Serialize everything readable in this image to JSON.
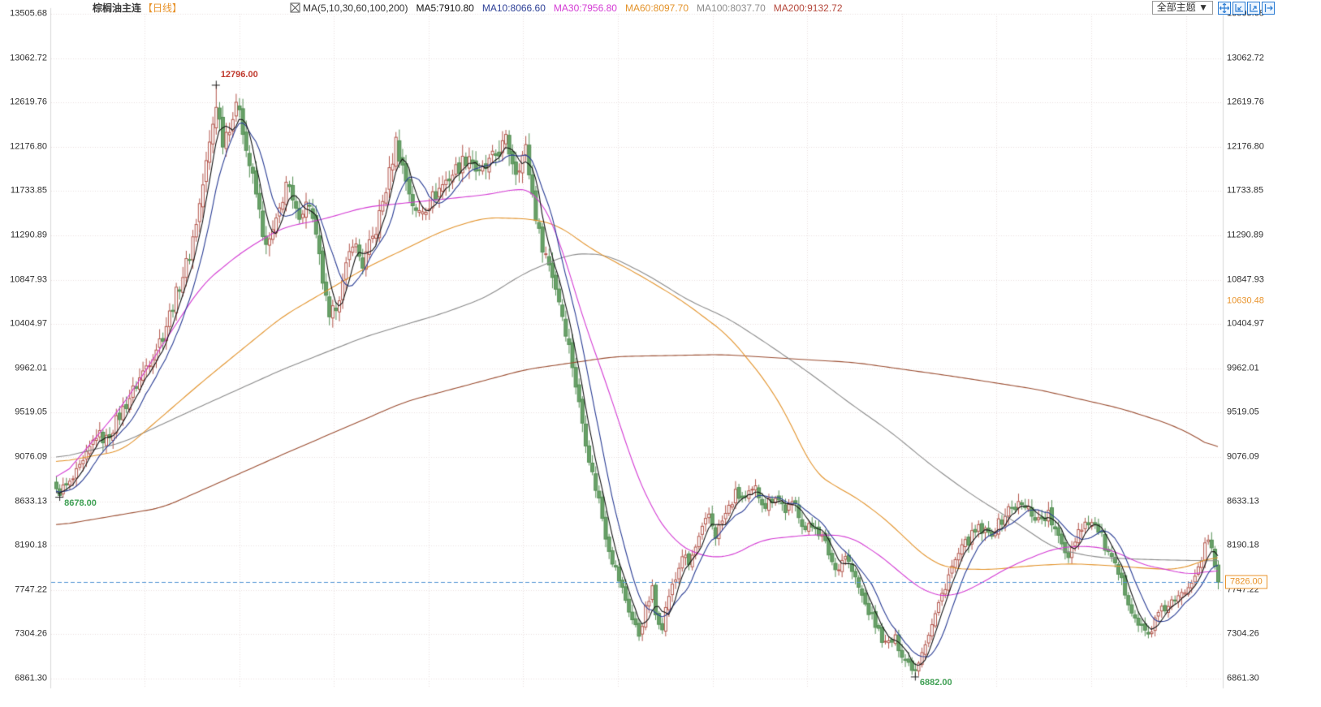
{
  "header": {
    "symbol": "棕榈油主连",
    "period": "【日线】",
    "ma_group": "MA(5,10,30,60,100,200)",
    "ma_items": [
      {
        "name": "MA5",
        "label": "MA5:7910.80",
        "color": "#141414",
        "window": 5
      },
      {
        "name": "MA10",
        "label": "MA10:8066.60",
        "color": "#2c3f96",
        "window": 10
      },
      {
        "name": "MA30",
        "label": "MA30:7956.80",
        "color": "#d43cd4",
        "window": 30
      },
      {
        "name": "MA60",
        "label": "MA60:8097.70",
        "color": "#e3932b",
        "window": 60
      },
      {
        "name": "MA100",
        "label": "MA100:8037.70",
        "color": "#8c8c8c",
        "window": 100
      },
      {
        "name": "MA200",
        "label": "MA200:9132.72",
        "color": "#b5483c",
        "window": 200
      }
    ],
    "controls": {
      "theme_selector": "全部主题 ▼",
      "icons": [
        "crosshair-icon",
        "zoom-out-icon",
        "zoom-in-icon",
        "pan-right-icon"
      ]
    }
  },
  "y_axis": {
    "max": 13505.68,
    "min": 6861.3,
    "labels": [
      "13505.68",
      "13062.72",
      "12619.76",
      "12176.80",
      "11733.85",
      "11290.89",
      "10847.93",
      "10404.97",
      "9962.01",
      "9519.05",
      "9076.09",
      "8633.13",
      "8190.18",
      "7747.22",
      "7304.26",
      "6861.30"
    ]
  },
  "right_axis_extra": [
    {
      "label": "10630.48",
      "price": 10630.48,
      "style": "plain-orange"
    },
    {
      "label": "7826.00",
      "price": 7826.0,
      "style": "boxed-orange"
    }
  ],
  "chart_data": {
    "type": "candlestick",
    "title": "棕榈油主连 日线",
    "n_candles": 350,
    "price_range": [
      6861.3,
      13505.68
    ],
    "last_close": 7826.0,
    "colors": {
      "up": "#b3564c",
      "down_fill": "#68a168",
      "down_border": "#548f54",
      "grid": "#eadfdf",
      "axis_text": "#2f2f2f",
      "last_price_line": "#4f94d4",
      "marker_high": "#c03a2e",
      "marker_low": "#3fa054",
      "cross": "#222222"
    },
    "close_anchors": [
      [
        0,
        8720
      ],
      [
        4,
        8800
      ],
      [
        8,
        9000
      ],
      [
        12,
        9300
      ],
      [
        15,
        9250
      ],
      [
        20,
        9550
      ],
      [
        24,
        9800
      ],
      [
        28,
        10050
      ],
      [
        32,
        10300
      ],
      [
        36,
        10700
      ],
      [
        40,
        11100
      ],
      [
        43,
        11600
      ],
      [
        46,
        12200
      ],
      [
        48,
        12620
      ],
      [
        50,
        12250
      ],
      [
        53,
        12480
      ],
      [
        55,
        12600
      ],
      [
        57,
        12150
      ],
      [
        60,
        11700
      ],
      [
        63,
        11150
      ],
      [
        66,
        11400
      ],
      [
        69,
        11820
      ],
      [
        72,
        11500
      ],
      [
        76,
        11620
      ],
      [
        79,
        11050
      ],
      [
        82,
        10420
      ],
      [
        86,
        10800
      ],
      [
        89,
        11250
      ],
      [
        92,
        11000
      ],
      [
        96,
        11350
      ],
      [
        100,
        11900
      ],
      [
        102,
        12230
      ],
      [
        105,
        11850
      ],
      [
        108,
        11500
      ],
      [
        112,
        11620
      ],
      [
        116,
        11800
      ],
      [
        120,
        11950
      ],
      [
        124,
        12100
      ],
      [
        127,
        11880
      ],
      [
        131,
        12050
      ],
      [
        135,
        12230
      ],
      [
        138,
        11950
      ],
      [
        141,
        12150
      ],
      [
        143,
        11700
      ],
      [
        145,
        11300
      ],
      [
        147,
        11100
      ],
      [
        149,
        10900
      ],
      [
        151,
        10650
      ],
      [
        153,
        10350
      ],
      [
        155,
        10000
      ],
      [
        157,
        9600
      ],
      [
        159,
        9250
      ],
      [
        161,
        8900
      ],
      [
        163,
        8650
      ],
      [
        165,
        8300
      ],
      [
        167,
        8050
      ],
      [
        169,
        7850
      ],
      [
        171,
        7650
      ],
      [
        173,
        7450
      ],
      [
        175,
        7300
      ],
      [
        177,
        7550
      ],
      [
        179,
        7750
      ],
      [
        180,
        7500
      ],
      [
        182,
        7400
      ],
      [
        184,
        7700
      ],
      [
        186,
        7850
      ],
      [
        188,
        8100
      ],
      [
        190,
        8000
      ],
      [
        193,
        8250
      ],
      [
        196,
        8500
      ],
      [
        198,
        8300
      ],
      [
        201,
        8500
      ],
      [
        204,
        8700
      ],
      [
        207,
        8650
      ],
      [
        210,
        8750
      ],
      [
        213,
        8600
      ],
      [
        216,
        8700
      ],
      [
        219,
        8550
      ],
      [
        222,
        8600
      ],
      [
        225,
        8350
      ],
      [
        228,
        8400
      ],
      [
        231,
        8200
      ],
      [
        234,
        7950
      ],
      [
        237,
        8100
      ],
      [
        240,
        7850
      ],
      [
        243,
        7600
      ],
      [
        246,
        7400
      ],
      [
        249,
        7200
      ],
      [
        252,
        7250
      ],
      [
        255,
        7050
      ],
      [
        258,
        6950
      ],
      [
        260,
        7150
      ],
      [
        263,
        7400
      ],
      [
        266,
        7700
      ],
      [
        268,
        7900
      ],
      [
        271,
        8100
      ],
      [
        274,
        8250
      ],
      [
        277,
        8350
      ],
      [
        280,
        8300
      ],
      [
        283,
        8400
      ],
      [
        286,
        8550
      ],
      [
        289,
        8600
      ],
      [
        292,
        8550
      ],
      [
        295,
        8450
      ],
      [
        298,
        8500
      ],
      [
        301,
        8250
      ],
      [
        304,
        8100
      ],
      [
        307,
        8350
      ],
      [
        310,
        8450
      ],
      [
        313,
        8350
      ],
      [
        316,
        8100
      ],
      [
        319,
        7900
      ],
      [
        322,
        7650
      ],
      [
        325,
        7400
      ],
      [
        328,
        7300
      ],
      [
        331,
        7500
      ],
      [
        334,
        7600
      ],
      [
        337,
        7650
      ],
      [
        340,
        7800
      ],
      [
        343,
        8000
      ],
      [
        346,
        8250
      ],
      [
        348,
        8000
      ],
      [
        349,
        7826
      ]
    ],
    "pre_history_anchors": [
      [
        -200,
        7500
      ],
      [
        -150,
        7800
      ],
      [
        -120,
        8300
      ],
      [
        -100,
        9400
      ],
      [
        -75,
        9550
      ],
      [
        -60,
        9300
      ],
      [
        -40,
        9050
      ],
      [
        -20,
        8850
      ],
      [
        -1,
        8700
      ]
    ],
    "computed_ma": [
      {
        "name": "MA10",
        "window": 10,
        "color": "#2c3f96"
      },
      {
        "name": "MA5",
        "window": 5,
        "color": "#141414"
      }
    ],
    "traced_ma": [
      {
        "name": "MA200",
        "color": "#9c4f33",
        "anchors": [
          [
            0,
            8390
          ],
          [
            32,
            8570
          ],
          [
            68,
            9100
          ],
          [
            105,
            9630
          ],
          [
            141,
            9950
          ],
          [
            168,
            10080
          ],
          [
            200,
            10100
          ],
          [
            240,
            10020
          ],
          [
            270,
            9880
          ],
          [
            295,
            9750
          ],
          [
            320,
            9560
          ],
          [
            335,
            9400
          ],
          [
            344,
            9250
          ],
          [
            349,
            9133
          ]
        ]
      },
      {
        "name": "MA100",
        "color": "#8c8c8c",
        "anchors": [
          [
            0,
            9060
          ],
          [
            20,
            9220
          ],
          [
            44,
            9590
          ],
          [
            68,
            9950
          ],
          [
            93,
            10280
          ],
          [
            117,
            10520
          ],
          [
            129,
            10670
          ],
          [
            141,
            10920
          ],
          [
            154,
            11100
          ],
          [
            160,
            11110
          ],
          [
            166,
            11090
          ],
          [
            178,
            10890
          ],
          [
            190,
            10640
          ],
          [
            202,
            10460
          ],
          [
            214,
            10200
          ],
          [
            227,
            9900
          ],
          [
            239,
            9600
          ],
          [
            251,
            9320
          ],
          [
            263,
            8990
          ],
          [
            275,
            8700
          ],
          [
            287,
            8450
          ],
          [
            300,
            8160
          ],
          [
            312,
            8075
          ],
          [
            324,
            8055
          ],
          [
            336,
            8045
          ],
          [
            349,
            8038
          ]
        ]
      },
      {
        "name": "MA60",
        "color": "#e3932b",
        "anchors": [
          [
            0,
            9020
          ],
          [
            20,
            9140
          ],
          [
            44,
            9830
          ],
          [
            68,
            10480
          ],
          [
            93,
            10965
          ],
          [
            117,
            11350
          ],
          [
            129,
            11470
          ],
          [
            143,
            11455
          ],
          [
            151,
            11390
          ],
          [
            161,
            11150
          ],
          [
            175,
            10900
          ],
          [
            188,
            10640
          ],
          [
            202,
            10290
          ],
          [
            214,
            9800
          ],
          [
            221,
            9400
          ],
          [
            227,
            8950
          ],
          [
            233,
            8800
          ],
          [
            239,
            8700
          ],
          [
            245,
            8560
          ],
          [
            251,
            8400
          ],
          [
            257,
            8200
          ],
          [
            263,
            8030
          ],
          [
            269,
            7960
          ],
          [
            281,
            7950
          ],
          [
            293,
            7990
          ],
          [
            305,
            8010
          ],
          [
            317,
            7990
          ],
          [
            329,
            7960
          ],
          [
            337,
            7950
          ],
          [
            344,
            8030
          ],
          [
            349,
            8098
          ]
        ]
      },
      {
        "name": "MA30",
        "color": "#d43cd4",
        "anchors": [
          [
            0,
            8800
          ],
          [
            20,
            9590
          ],
          [
            44,
            10805
          ],
          [
            56,
            11130
          ],
          [
            68,
            11370
          ],
          [
            80,
            11450
          ],
          [
            93,
            11575
          ],
          [
            105,
            11615
          ],
          [
            117,
            11655
          ],
          [
            130,
            11700
          ],
          [
            139,
            11760
          ],
          [
            144,
            11740
          ],
          [
            151,
            11290
          ],
          [
            158,
            10480
          ],
          [
            166,
            9750
          ],
          [
            173,
            9020
          ],
          [
            178,
            8615
          ],
          [
            185,
            8250
          ],
          [
            193,
            8090
          ],
          [
            202,
            8070
          ],
          [
            212,
            8250
          ],
          [
            227,
            8300
          ],
          [
            238,
            8290
          ],
          [
            245,
            8150
          ],
          [
            251,
            8000
          ],
          [
            257,
            7820
          ],
          [
            263,
            7700
          ],
          [
            269,
            7680
          ],
          [
            275,
            7760
          ],
          [
            287,
            7990
          ],
          [
            300,
            8165
          ],
          [
            310,
            8190
          ],
          [
            318,
            8140
          ],
          [
            326,
            8000
          ],
          [
            334,
            7950
          ],
          [
            340,
            7900
          ],
          [
            345,
            7920
          ],
          [
            349,
            7957
          ]
        ]
      }
    ],
    "force": {
      "high": {
        "bar": 48,
        "price": 12796.0
      },
      "low": {
        "bar": 258,
        "price": 6882.0
      },
      "early_low": {
        "bar": 1,
        "price": 8678.0
      },
      "last_close": 7826.0
    },
    "markers": [
      {
        "text": "12796.00",
        "price": 12796.0,
        "bar": 48,
        "type": "high",
        "color": "#c03a2e"
      },
      {
        "text": "8678.00",
        "price": 8678.0,
        "bar": 1,
        "type": "low",
        "color": "#3fa054"
      },
      {
        "text": "6882.00",
        "price": 6882.0,
        "bar": 258,
        "type": "low",
        "color": "#3fa054"
      }
    ],
    "last_price_line": {
      "price": 7826.0
    }
  }
}
